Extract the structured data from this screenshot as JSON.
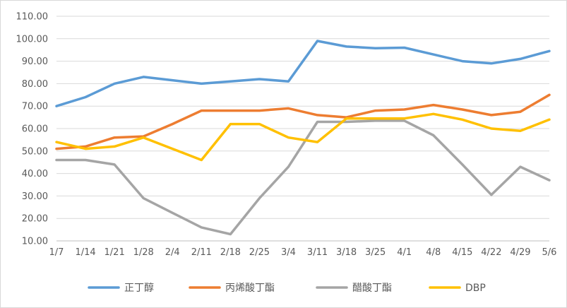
{
  "chart_data": {
    "type": "line",
    "title": "",
    "xlabel": "",
    "ylabel": "",
    "ylim": [
      10,
      110
    ],
    "y_ticks": [
      "10.00",
      "20.00",
      "30.00",
      "40.00",
      "50.00",
      "60.00",
      "70.00",
      "80.00",
      "90.00",
      "100.00",
      "110.00"
    ],
    "grid": "horizontal",
    "legend_position": "bottom",
    "categories": [
      "1/7",
      "1/14",
      "1/21",
      "1/28",
      "2/4",
      "2/11",
      "2/18",
      "2/25",
      "3/4",
      "3/11",
      "3/18",
      "3/25",
      "4/1",
      "4/8",
      "4/15",
      "4/22",
      "4/29",
      "5/6"
    ],
    "series": [
      {
        "name": "正丁醇",
        "color": "#5B9BD5",
        "values": [
          70,
          74,
          80,
          83,
          81.5,
          80,
          81,
          82,
          81,
          99,
          96.5,
          95.8,
          96,
          93,
          90,
          89,
          91,
          94.5
        ]
      },
      {
        "name": "丙烯酸丁酯",
        "color": "#ED7D31",
        "values": [
          51,
          52,
          56,
          56.5,
          62,
          68,
          68,
          68,
          69,
          66,
          65,
          68,
          68.5,
          70.5,
          68.5,
          66,
          67.5,
          75
        ]
      },
      {
        "name": "醋酸丁酯",
        "color": "#A5A5A5",
        "values": [
          46,
          46,
          44,
          29,
          22.5,
          16,
          13,
          29,
          43,
          63,
          63,
          63.5,
          63.5,
          57,
          44,
          30.5,
          43,
          37
        ]
      },
      {
        "name": "DBP",
        "color": "#FFC000",
        "values": [
          54,
          51,
          52,
          56,
          51,
          46,
          62,
          62,
          56,
          54,
          64.5,
          64.5,
          64.5,
          66.5,
          64,
          60,
          59,
          64
        ]
      }
    ]
  }
}
